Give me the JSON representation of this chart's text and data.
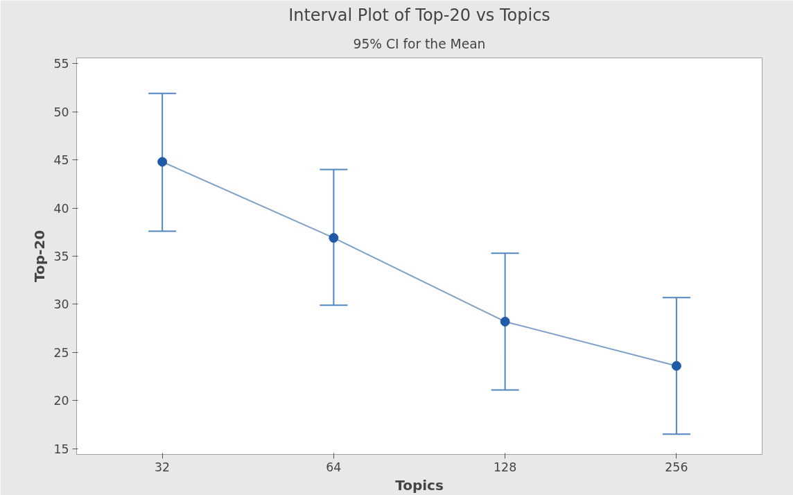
{
  "chart_data": {
    "type": "line",
    "title": "Interval Plot of Top-20 vs Topics",
    "subtitle": "95% CI for the Mean",
    "xlabel": "Topics",
    "ylabel": "Top-20",
    "categories": [
      "32",
      "64",
      "128",
      "256"
    ],
    "series": [
      {
        "color": "#1f5aa6",
        "values": [
          44.8,
          36.9,
          28.2,
          23.6
        ],
        "errors": [
          [
            37.6,
            51.9
          ],
          [
            29.9,
            44.0
          ],
          [
            21.1,
            35.3
          ],
          [
            16.5,
            30.7
          ]
        ]
      }
    ],
    "ylim": [
      14.4,
      55.6
    ],
    "yticks": [
      15,
      20,
      25,
      30,
      35,
      40,
      45,
      50,
      55
    ],
    "grid": false,
    "marker": "circle",
    "line_style": "solid"
  }
}
